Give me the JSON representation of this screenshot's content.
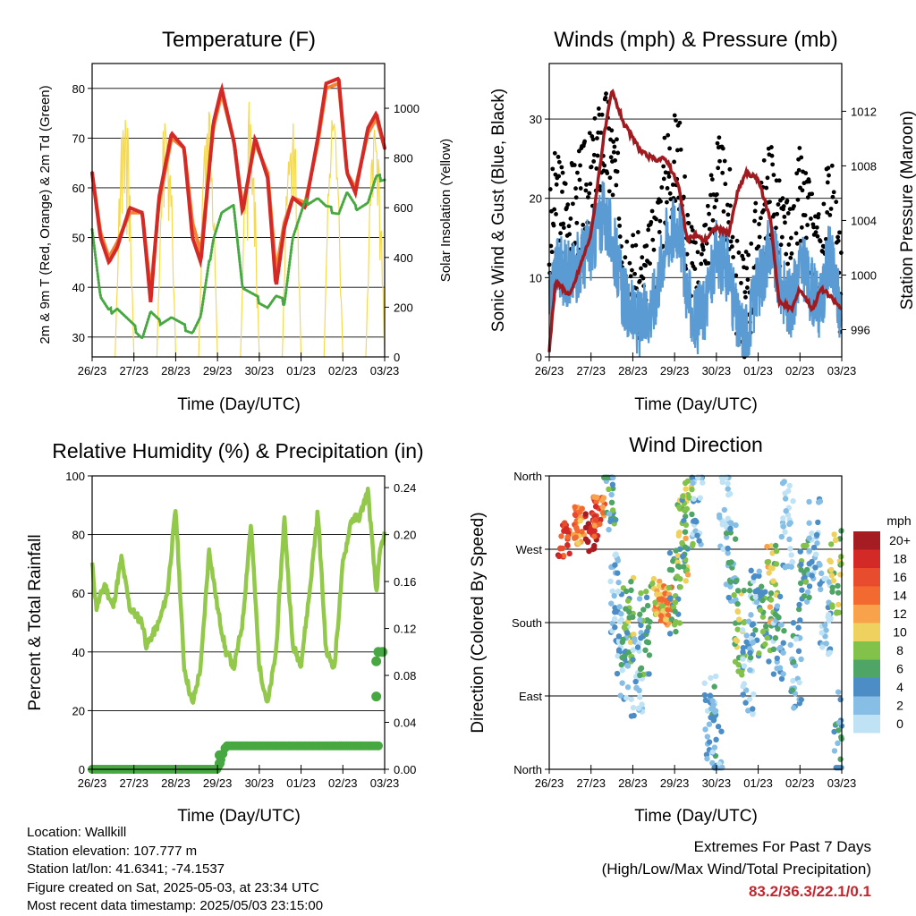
{
  "x_ticks": [
    "26/23",
    "27/23",
    "28/23",
    "29/23",
    "30/23",
    "01/23",
    "02/23",
    "03/23"
  ],
  "info": {
    "location": "Location: Wallkill",
    "elevation": "Station elevation: 107.777 m",
    "latlon": "Station lat/lon: 41.6341; -74.1537",
    "created": "Figure created on Sat, 2025-05-03, at 23:34 UTC",
    "recent": "Most recent data timestamp: 2025/05/03 23:15:00"
  },
  "extremes": {
    "title": "Extremes For Past 7 Days",
    "subtitle": "(High/Low/Max Wind/Total Precipitation)",
    "values": "83.2/36.3/22.1/0.1"
  },
  "colors": {
    "t2m": "#d42a27",
    "t9m": "#f58233",
    "td": "#47a841",
    "solar": "#f5d94e",
    "gust": "#000000",
    "wind": "#5b9bd3",
    "pressure": "#a01a1f",
    "rh": "#92c94a",
    "precip": "#47a841"
  },
  "chart_data": [
    {
      "type": "line",
      "title": "Temperature (F)",
      "xlabel": "Time (Day/UTC)",
      "ylabel": "2m & 9m T (Red, Orange) & 2m Td (Green)",
      "y2label": "Solar Insolation (Yellow)",
      "ylim": [
        26,
        85
      ],
      "yticks": [
        30,
        40,
        50,
        60,
        70,
        80
      ],
      "y2lim": [
        0,
        1180
      ],
      "y2ticks": [
        0,
        200,
        400,
        600,
        800,
        1000
      ],
      "grid": true,
      "x": [
        0,
        0.2,
        0.4,
        0.6,
        0.9,
        1.2,
        1.4,
        1.6,
        1.9,
        2.2,
        2.4,
        2.6,
        2.9,
        3.1,
        3.4,
        3.6,
        3.9,
        4.2,
        4.4,
        4.6,
        4.8,
        5.1,
        5.4,
        5.6,
        5.9,
        6.1,
        6.3,
        6.6,
        6.8,
        7.0
      ],
      "series": [
        {
          "axis": "left",
          "values": [
            63,
            50,
            45,
            48,
            56,
            55,
            37,
            58,
            71,
            68,
            50,
            45,
            73,
            80,
            69,
            55,
            70,
            62,
            40,
            52,
            58,
            56,
            70,
            81,
            82,
            63,
            59,
            72,
            75,
            68
          ]
        },
        {
          "axis": "left",
          "values": [
            63,
            51,
            46,
            49,
            55,
            55,
            39,
            57,
            70,
            68,
            53,
            47,
            72,
            79,
            69,
            56,
            69,
            63,
            43,
            53,
            58,
            57,
            69,
            80,
            81,
            63,
            60,
            71,
            74,
            68
          ]
        },
        {
          "axis": "left",
          "values": [
            52,
            38,
            35,
            36,
            33,
            30,
            35,
            33,
            34,
            32,
            31,
            34,
            50,
            55,
            56,
            40,
            38,
            36,
            38,
            37,
            50,
            57,
            58,
            56,
            55,
            59,
            56,
            57,
            62,
            62
          ]
        },
        {
          "axis": "right",
          "daily_peak": 1080
        }
      ]
    },
    {
      "type": "line",
      "title": "Winds (mph) & Pressure (mb)",
      "xlabel": "Time (Day/UTC)",
      "ylabel": "Sonic Wind & Gust (Blue, Black)",
      "y2label": "Station Pressure (Maroon)",
      "ylim": [
        0,
        37
      ],
      "yticks": [
        0,
        10,
        20,
        30
      ],
      "y2lim": [
        994,
        1015.5
      ],
      "y2ticks": [
        996,
        1000,
        1004,
        1008,
        1012
      ],
      "grid": true,
      "x": [
        0,
        0.15,
        0.5,
        1.0,
        1.3,
        1.5,
        1.8,
        2.0,
        2.2,
        2.5,
        2.8,
        3.1,
        3.3,
        3.5,
        3.7,
        4.0,
        4.3,
        4.5,
        4.7,
        5.0,
        5.3,
        5.5,
        5.8,
        6.0,
        6.3,
        6.5,
        6.7,
        7.0
      ],
      "series": [
        {
          "axis": "left",
          "values": [
            14,
            20,
            18,
            22,
            28,
            25,
            14,
            10,
            8,
            12,
            23,
            25,
            15,
            8,
            12,
            22,
            18,
            8,
            6,
            15,
            22,
            16,
            12,
            20,
            14,
            12,
            20,
            8
          ]
        },
        {
          "axis": "left",
          "values": [
            6,
            12,
            10,
            14,
            18,
            15,
            7,
            5,
            4,
            7,
            15,
            17,
            8,
            4,
            6,
            13,
            11,
            4,
            3,
            9,
            14,
            10,
            6,
            12,
            8,
            6,
            13,
            5
          ]
        },
        {
          "axis": "right",
          "values": [
            994.5,
            999.5,
            998.5,
            1003,
            1010,
            1013.5,
            1011,
            1010,
            1009,
            1008.5,
            1008.5,
            1006.5,
            1002.5,
            1003,
            1002.5,
            1003.5,
            1003,
            1006,
            1007.5,
            1007,
            1004,
            998,
            997.5,
            999,
            997.5,
            999,
            998.5,
            997.5
          ]
        }
      ]
    },
    {
      "type": "line",
      "title": "Relative Humidity (%) & Precipitation (in)",
      "xlabel": "Time (Day/UTC)",
      "ylabel": "Percent & Total Rainfall",
      "ylim": [
        0,
        100
      ],
      "yticks": [
        0,
        20,
        40,
        60,
        80,
        100
      ],
      "y2lim": [
        0,
        0.25
      ],
      "y2ticks": [
        "0.00",
        "0.04",
        "0.08",
        "0.12",
        "0.16",
        "0.20",
        "0.24"
      ],
      "grid": true,
      "x": [
        0,
        0.1,
        0.3,
        0.5,
        0.7,
        0.9,
        1.2,
        1.3,
        1.6,
        1.8,
        2.0,
        2.2,
        2.4,
        2.6,
        2.8,
        3.0,
        3.2,
        3.4,
        3.6,
        3.8,
        4.0,
        4.2,
        4.4,
        4.6,
        4.8,
        5.0,
        5.2,
        5.4,
        5.6,
        5.8,
        6.0,
        6.2,
        6.4,
        6.6,
        6.8,
        6.9,
        7.0
      ],
      "series": [
        {
          "axis": "left",
          "values": [
            70,
            55,
            63,
            55,
            72,
            55,
            50,
            42,
            50,
            60,
            89,
            35,
            22,
            35,
            75,
            55,
            40,
            35,
            50,
            84,
            35,
            22,
            40,
            86,
            42,
            36,
            60,
            88,
            40,
            35,
            70,
            85,
            86,
            95,
            60,
            75,
            80
          ]
        },
        {
          "axis": "right",
          "values": [
            0.0,
            0.0,
            0.0,
            0.0,
            0.0,
            0.0,
            0.0,
            0.0,
            0.0,
            0.0,
            0.0,
            0.0,
            0.0,
            0.0,
            0.0,
            0.0,
            0.02,
            0.02,
            0.02,
            0.02,
            0.02,
            0.02,
            0.02,
            0.02,
            0.02,
            0.02,
            0.02,
            0.02,
            0.02,
            0.02,
            0.02,
            0.02,
            0.02,
            0.02,
            0.02,
            0.1,
            0.1
          ]
        }
      ]
    },
    {
      "type": "scatter",
      "title": "Wind Direction",
      "xlabel": "Time (Day/UTC)",
      "ylabel": "Direction (Colored By Speed)",
      "yticks": [
        "North",
        "East",
        "South",
        "West",
        "North"
      ],
      "ylim": [
        0,
        360
      ],
      "grid": true,
      "clusters": [
        {
          "x": 0.35,
          "dir": 280,
          "spd": 18
        },
        {
          "x": 0.7,
          "dir": 300,
          "spd": 14
        },
        {
          "x": 1.0,
          "dir": 290,
          "spd": 20
        },
        {
          "x": 1.2,
          "dir": 310,
          "spd": 16
        },
        {
          "x": 1.45,
          "dir": 345,
          "spd": 6
        },
        {
          "x": 1.6,
          "dir": 210,
          "spd": 3
        },
        {
          "x": 1.75,
          "dir": 140,
          "spd": 4
        },
        {
          "x": 1.9,
          "dir": 185,
          "spd": 8
        },
        {
          "x": 2.1,
          "dir": 120,
          "spd": 2
        },
        {
          "x": 2.3,
          "dir": 170,
          "spd": 6
        },
        {
          "x": 2.6,
          "dir": 210,
          "spd": 12
        },
        {
          "x": 2.8,
          "dir": 200,
          "spd": 14
        },
        {
          "x": 3.0,
          "dir": 220,
          "spd": 7
        },
        {
          "x": 3.2,
          "dir": 280,
          "spd": 10
        },
        {
          "x": 3.3,
          "dir": 310,
          "spd": 8
        },
        {
          "x": 3.55,
          "dir": 330,
          "spd": 3
        },
        {
          "x": 3.85,
          "dir": 60,
          "spd": 4
        },
        {
          "x": 4.0,
          "dir": 30,
          "spd": 3
        },
        {
          "x": 4.2,
          "dir": 320,
          "spd": 1
        },
        {
          "x": 4.35,
          "dir": 250,
          "spd": 5
        },
        {
          "x": 4.55,
          "dir": 170,
          "spd": 9
        },
        {
          "x": 4.75,
          "dir": 120,
          "spd": 3
        },
        {
          "x": 4.9,
          "dir": 190,
          "spd": 4
        },
        {
          "x": 5.15,
          "dir": 175,
          "spd": 7
        },
        {
          "x": 5.35,
          "dir": 220,
          "spd": 10
        },
        {
          "x": 5.5,
          "dir": 160,
          "spd": 4
        },
        {
          "x": 5.7,
          "dir": 300,
          "spd": 2
        },
        {
          "x": 5.9,
          "dir": 130,
          "spd": 4
        },
        {
          "x": 6.1,
          "dir": 230,
          "spd": 6
        },
        {
          "x": 6.35,
          "dir": 280,
          "spd": 3
        },
        {
          "x": 6.6,
          "dir": 190,
          "spd": 2
        },
        {
          "x": 6.85,
          "dir": 240,
          "spd": 9
        },
        {
          "x": 6.95,
          "dir": 40,
          "spd": 4
        }
      ],
      "legend": {
        "title": "mph",
        "labels": [
          "20+",
          "18",
          "16",
          "14",
          "12",
          "10",
          "8",
          "6",
          "4",
          "2",
          "0"
        ],
        "colors": [
          "#a51d22",
          "#d42a27",
          "#e84c2f",
          "#f26a30",
          "#f8a24c",
          "#eed15e",
          "#83c24a",
          "#4ea566",
          "#4b8dc4",
          "#86bee5",
          "#bfe3f5"
        ]
      }
    }
  ]
}
